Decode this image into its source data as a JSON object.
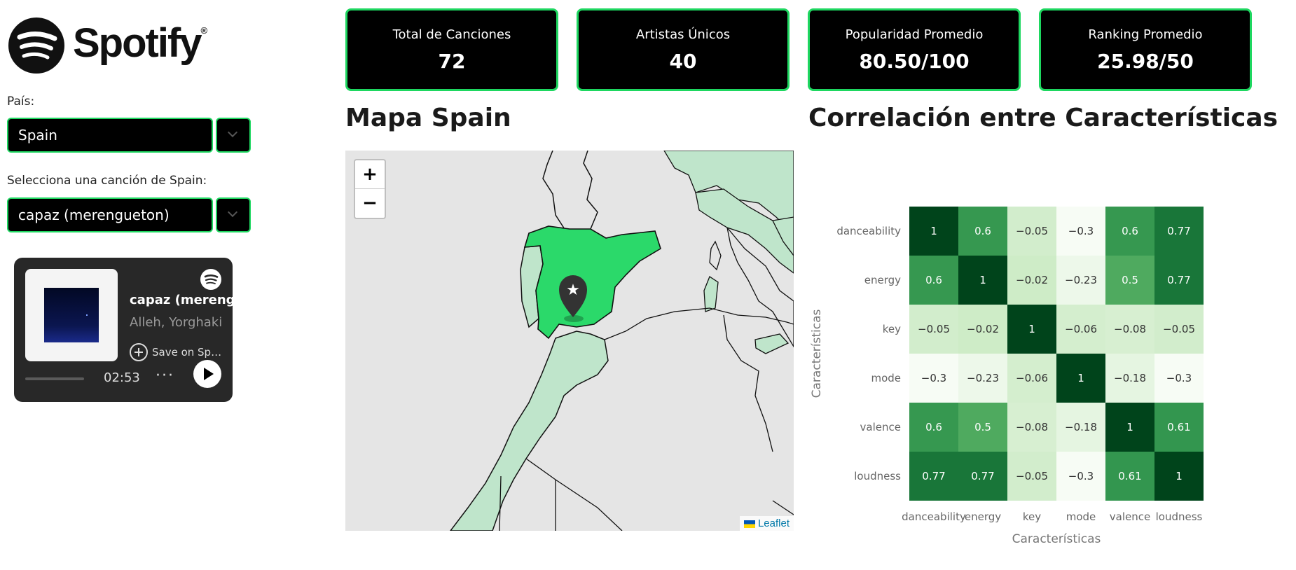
{
  "sidebar": {
    "logo_text": "Spotify",
    "country_label": "País:",
    "country_value": "Spain",
    "song_label": "Selecciona una canción de Spain:",
    "song_value": "capaz (merengueton)"
  },
  "player": {
    "title": "capaz (merengueton)",
    "artist": "Alleh, Yorghaki",
    "save_label": "Save on Spotify",
    "time": "02:53",
    "more": "···",
    "progress": 0.0
  },
  "kpis": [
    {
      "label": "Total de Canciones",
      "value": "72"
    },
    {
      "label": "Artistas Únicos",
      "value": "40"
    },
    {
      "label": "Popularidad Promedio",
      "value": "80.50/100"
    },
    {
      "label": "Ranking Promedio",
      "value": "25.98/50"
    }
  ],
  "map": {
    "title": "Mapa Spain",
    "zoom_in": "+",
    "zoom_out": "−",
    "attribution": "Leaflet",
    "highlight_color": "#2bd96a",
    "neighbor_color": "#bfe5cb"
  },
  "heatmap": {
    "title": "Correlación entre Características"
  },
  "chart_data": {
    "type": "heatmap",
    "title": "",
    "xlabel": "Características",
    "ylabel": "Características",
    "x": [
      "danceability",
      "energy",
      "key",
      "mode",
      "valence",
      "loudness"
    ],
    "y": [
      "danceability",
      "energy",
      "key",
      "mode",
      "valence",
      "loudness"
    ],
    "values": [
      [
        1,
        0.6,
        -0.05,
        -0.3,
        0.6,
        0.77
      ],
      [
        0.6,
        1,
        -0.02,
        -0.23,
        0.5,
        0.77
      ],
      [
        -0.05,
        -0.02,
        1,
        -0.06,
        -0.08,
        -0.05
      ],
      [
        -0.3,
        -0.23,
        -0.06,
        1,
        -0.18,
        -0.3
      ],
      [
        0.6,
        0.5,
        -0.08,
        -0.18,
        1,
        0.61
      ],
      [
        0.77,
        0.77,
        -0.05,
        -0.3,
        0.61,
        1
      ]
    ],
    "colorscale": "Greens",
    "zlim": [
      -0.3,
      1
    ]
  }
}
